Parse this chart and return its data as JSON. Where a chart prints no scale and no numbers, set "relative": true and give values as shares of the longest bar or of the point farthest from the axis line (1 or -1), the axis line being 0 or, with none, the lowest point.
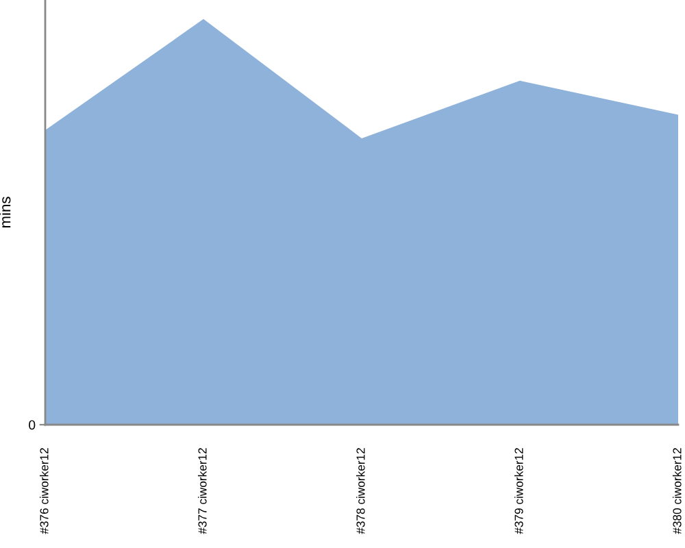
{
  "chart_data": {
    "type": "area",
    "relative": true,
    "ylabel": "mins",
    "categories": [
      "#376 ciworker12",
      "#377 ciworker12",
      "#378 ciworker12",
      "#379 ciworker12",
      "#380 ciworker12"
    ],
    "values": [
      0.726,
      1,
      0.706,
      0.848,
      0.764
    ],
    "color": "#8fb2da",
    "annotations": [
      "0"
    ]
  }
}
